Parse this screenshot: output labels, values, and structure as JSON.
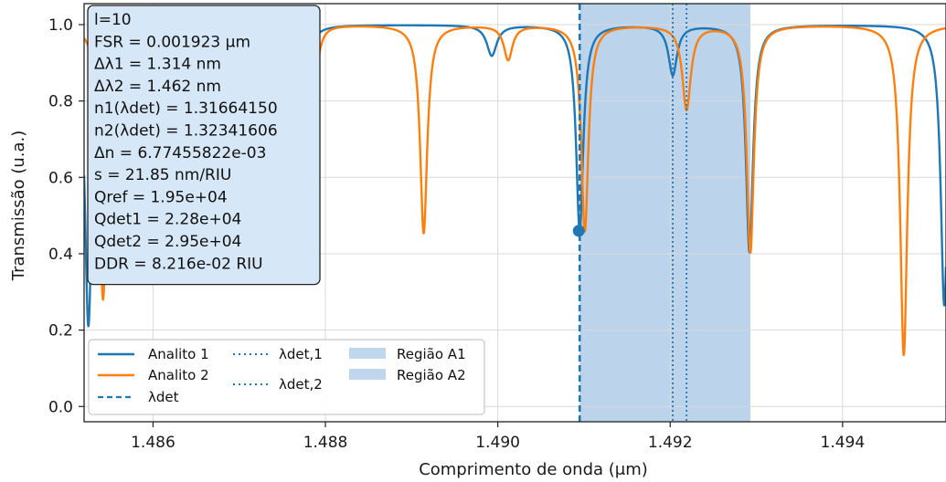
{
  "chart_data": {
    "type": "line",
    "xlabel": "Comprimento de onda (μm)",
    "ylabel": "Transmissão (u.a.)",
    "xlim": [
      1.4852,
      1.4952
    ],
    "ylim": [
      -0.04,
      1.055
    ],
    "xticks": [
      {
        "value": 1.486,
        "label": "1.486"
      },
      {
        "value": 1.488,
        "label": "1.488"
      },
      {
        "value": 1.49,
        "label": "1.490"
      },
      {
        "value": 1.492,
        "label": "1.492"
      },
      {
        "value": 1.494,
        "label": "1.494"
      }
    ],
    "yticks": [
      {
        "value": 0.0,
        "label": "0.0"
      },
      {
        "value": 0.2,
        "label": "0.2"
      },
      {
        "value": 0.4,
        "label": "0.4"
      },
      {
        "value": 0.6,
        "label": "0.6"
      },
      {
        "value": 0.8,
        "label": "0.8"
      },
      {
        "value": 1.0,
        "label": "1.0"
      }
    ],
    "grid": true,
    "series": [
      {
        "name": "Analito 1",
        "color": "#1f77b4",
        "dips": [
          {
            "center": 1.48525,
            "depth": 0.79,
            "width": 5e-05
          },
          {
            "center": 1.48773,
            "depth": 0.19,
            "width": 7e-05
          },
          {
            "center": 1.48993,
            "depth": 0.08,
            "width": 7e-05
          },
          {
            "center": 1.49095,
            "depth": 0.54,
            "width": 5e-05
          },
          {
            "center": 1.49203,
            "depth": 0.13,
            "width": 6e-05
          },
          {
            "center": 1.49292,
            "depth": 0.595,
            "width": 5e-05
          },
          {
            "center": 1.49518,
            "depth": 0.735,
            "width": 5e-05
          }
        ]
      },
      {
        "name": "Analito 2",
        "color": "#ff7f0e",
        "dips": [
          {
            "center": 1.48542,
            "depth": 0.72,
            "width": 5e-05
          },
          {
            "center": 1.48788,
            "depth": 0.125,
            "width": 6e-05
          },
          {
            "center": 1.48914,
            "depth": 0.545,
            "width": 5e-05
          },
          {
            "center": 1.49012,
            "depth": 0.09,
            "width": 6e-05
          },
          {
            "center": 1.49101,
            "depth": 0.54,
            "width": 5e-05
          },
          {
            "center": 1.49219,
            "depth": 0.22,
            "width": 6e-05
          },
          {
            "center": 1.49293,
            "depth": 0.595,
            "width": 5e-05
          },
          {
            "center": 1.49471,
            "depth": 0.865,
            "width": 5e-05
          }
        ]
      }
    ],
    "lambda_det": {
      "label": "λdet",
      "x": 1.49095,
      "marker_y": 0.46,
      "color": "#1f77b4"
    },
    "lambda_det_1": {
      "label": "λdet,1",
      "x": 1.49203,
      "color": "#1f77b4"
    },
    "lambda_det_2": {
      "label": "λdet,2",
      "x": 1.49219,
      "color": "#1f77b4"
    },
    "regions": [
      {
        "name": "Região A1",
        "x0": 1.49095,
        "x1": 1.49293,
        "color": "#a9c8e6",
        "opacity": 0.55
      },
      {
        "name": "Região A2",
        "x0": 1.49095,
        "x1": 1.49293,
        "color": "#a9c8e6",
        "opacity": 0.55
      }
    ],
    "legend_position": "bottom-left",
    "info_box": {
      "position": "top-left",
      "background": "#d6e7f7",
      "lines": [
        "l=10",
        "FSR = 0.001923 μm",
        "Δλ1 = 1.314 nm",
        "Δλ2 = 1.462 nm",
        "n1(λdet) = 1.31664150",
        "n2(λdet) = 1.32341606",
        "Δn = 6.77455822e-03",
        "s = 21.85 nm/RIU",
        "Qref = 1.95e+04",
        "Qdet1 = 2.28e+04",
        "Qdet2 = 2.95e+04",
        "DDR = 8.216e-02 RIU"
      ]
    }
  }
}
